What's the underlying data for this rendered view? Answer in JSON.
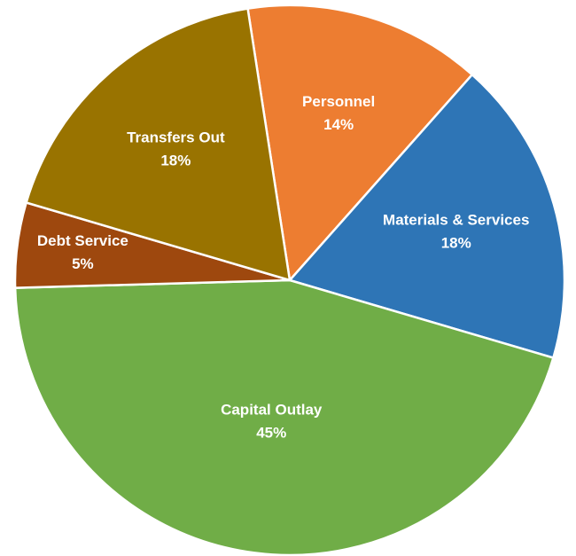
{
  "chart_data": {
    "type": "pie",
    "categories": [
      "Personnel",
      "Materials & Services",
      "Capital Outlay",
      "Debt Service",
      "Transfers Out"
    ],
    "values": [
      14,
      18,
      45,
      5,
      18
    ],
    "value_labels": [
      "14%",
      "18%",
      "45%",
      "5%",
      "18%"
    ],
    "colors": [
      "#ed7d31",
      "#2e75b6",
      "#70ad47",
      "#9e480e",
      "#997300"
    ]
  }
}
